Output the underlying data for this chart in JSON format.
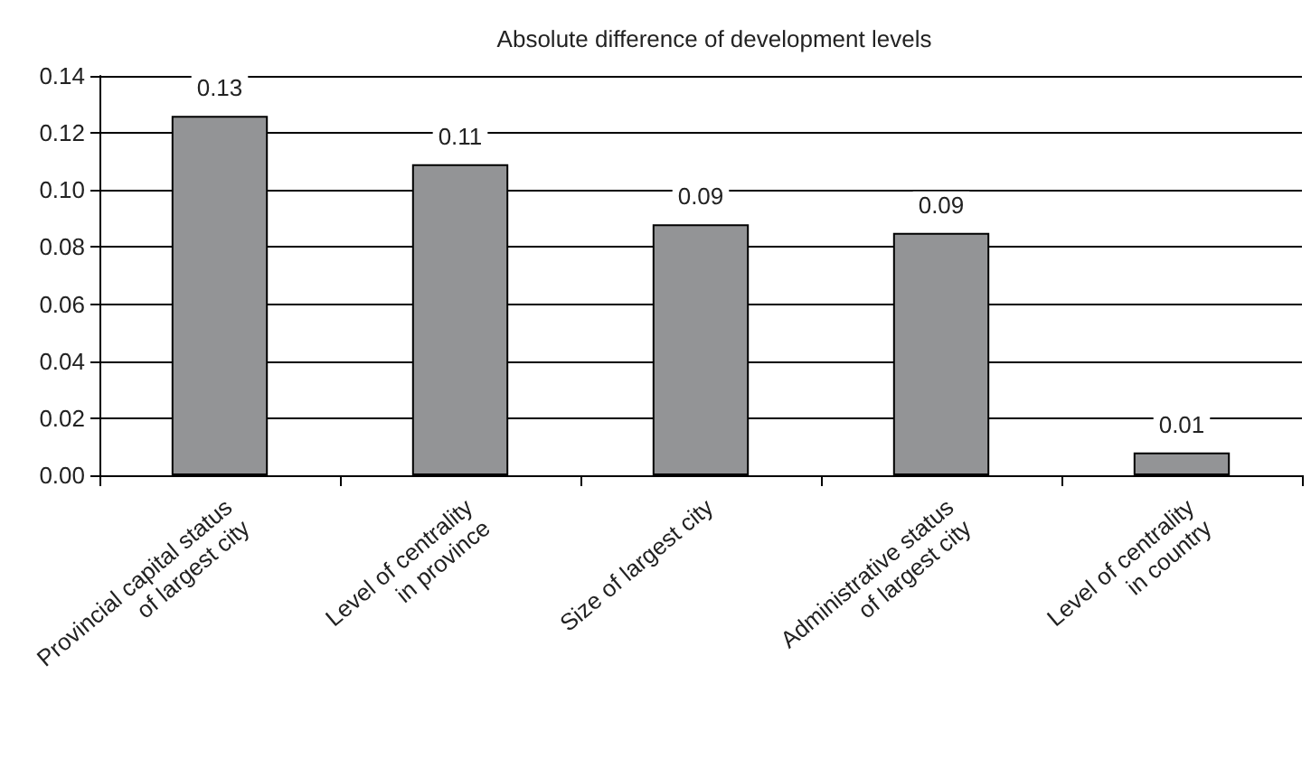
{
  "chart_data": {
    "type": "bar",
    "title": "Absolute difference of development levels",
    "categories": [
      "Provincial capital status\nof largest city",
      "Level of centrality\nin province",
      "Size of largest city",
      "Administrative status\nof largest city",
      "Level of centrality\nin country"
    ],
    "values": [
      0.126,
      0.109,
      0.088,
      0.085,
      0.008
    ],
    "value_labels": [
      "0.13",
      "0.11",
      "0.09",
      "0.09",
      "0.01"
    ],
    "color": "#939496",
    "ylim": [
      0,
      0.14
    ],
    "yticks": [
      "0.00",
      "0.02",
      "0.04",
      "0.06",
      "0.08",
      "0.10",
      "0.12",
      "0.14"
    ],
    "grid": "y"
  }
}
